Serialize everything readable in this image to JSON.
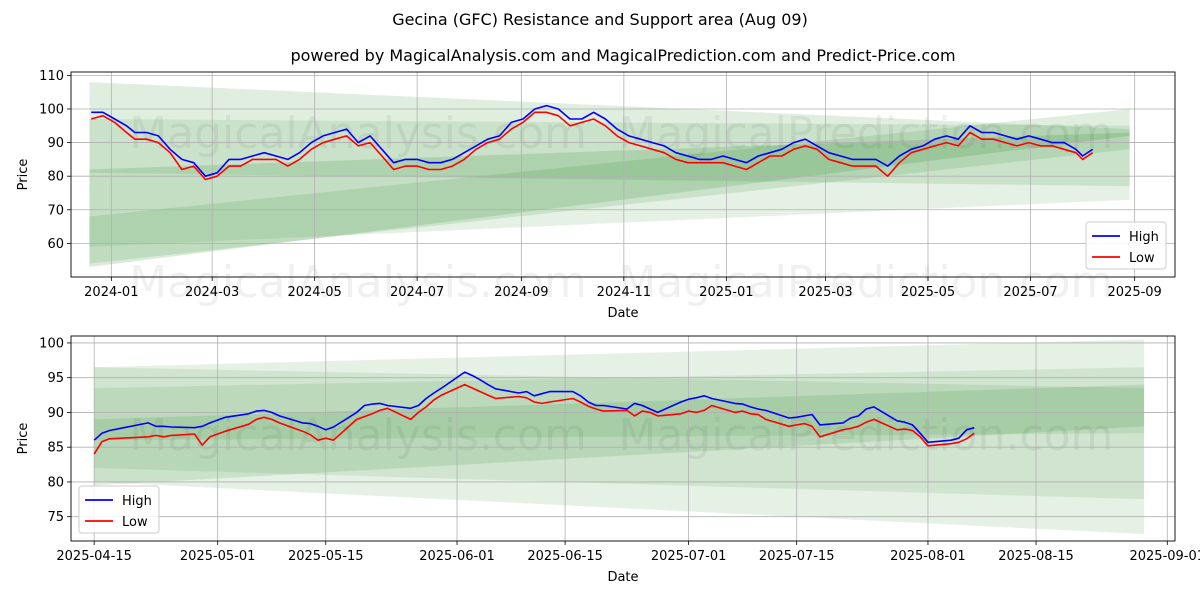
{
  "figure": {
    "title": "Gecina (GFC) Resistance and Support area (Aug 09)",
    "subtitle": "powered by MagicalAnalysis.com and MagicalPrediction.com and Predict-Price.com",
    "watermarks": [
      "MagicalAnalysis.com",
      "MagicalPrediction.com"
    ]
  },
  "colors": {
    "high": "#0000ff",
    "low": "#ff0000",
    "band": "#2e8b2e",
    "grid": "#b0b0b0"
  },
  "chart_data": [
    {
      "type": "line",
      "id": "overview",
      "xlabel": "Date",
      "ylabel": "Price",
      "x_axis": "date",
      "xlim": [
        "2023-12-08",
        "2025-09-25"
      ],
      "ylim": [
        50,
        111
      ],
      "x_ticks": [
        "2024-01-01",
        "2024-03-01",
        "2024-05-01",
        "2024-07-01",
        "2024-09-01",
        "2024-11-01",
        "2025-01-01",
        "2025-03-01",
        "2025-05-01",
        "2025-07-01",
        "2025-09-01"
      ],
      "x_tick_labels": [
        "2024-01",
        "2024-03",
        "2024-05",
        "2024-07",
        "2024-09",
        "2024-11",
        "2025-01",
        "2025-03",
        "2025-05",
        "2025-07",
        "2025-09"
      ],
      "y_ticks": [
        60,
        70,
        80,
        90,
        100,
        110
      ],
      "grid": true,
      "legend": {
        "placement": "lower right",
        "entries": [
          "High",
          "Low"
        ]
      },
      "bands": [
        {
          "x": [
            "2023-12-19",
            "2025-08-29"
          ],
          "upper": [
            108,
            94
          ],
          "lower": [
            81,
            77
          ],
          "opacity": 0.15
        },
        {
          "x": [
            "2023-12-19",
            "2025-08-29"
          ],
          "upper": [
            97,
            95
          ],
          "lower": [
            59,
            73
          ],
          "opacity": 0.12
        },
        {
          "x": [
            "2023-12-19",
            "2025-08-29"
          ],
          "upper": [
            82,
            93
          ],
          "lower": [
            53,
            92
          ],
          "opacity": 0.18
        },
        {
          "x": [
            "2023-12-19",
            "2025-08-29"
          ],
          "upper": [
            68,
            100
          ],
          "lower": [
            54,
            88
          ],
          "opacity": 0.15
        }
      ],
      "series": [
        {
          "name": "High",
          "x": [
            "2023-12-20",
            "2023-12-27",
            "2024-01-03",
            "2024-01-10",
            "2024-01-15",
            "2024-01-22",
            "2024-01-29",
            "2024-02-05",
            "2024-02-12",
            "2024-02-19",
            "2024-02-26",
            "2024-03-04",
            "2024-03-11",
            "2024-03-18",
            "2024-03-25",
            "2024-04-01",
            "2024-04-08",
            "2024-04-15",
            "2024-04-22",
            "2024-04-29",
            "2024-05-06",
            "2024-05-13",
            "2024-05-20",
            "2024-05-27",
            "2024-06-03",
            "2024-06-10",
            "2024-06-17",
            "2024-06-24",
            "2024-07-01",
            "2024-07-08",
            "2024-07-15",
            "2024-07-22",
            "2024-07-29",
            "2024-08-05",
            "2024-08-12",
            "2024-08-19",
            "2024-08-26",
            "2024-09-02",
            "2024-09-09",
            "2024-09-16",
            "2024-09-23",
            "2024-09-30",
            "2024-10-07",
            "2024-10-14",
            "2024-10-21",
            "2024-10-28",
            "2024-11-04",
            "2024-11-11",
            "2024-11-18",
            "2024-11-25",
            "2024-12-02",
            "2024-12-09",
            "2024-12-16",
            "2024-12-23",
            "2024-12-30",
            "2025-01-06",
            "2025-01-13",
            "2025-01-20",
            "2025-01-27",
            "2025-02-03",
            "2025-02-10",
            "2025-02-17",
            "2025-02-24",
            "2025-03-03",
            "2025-03-10",
            "2025-03-17",
            "2025-03-24",
            "2025-03-31",
            "2025-04-07",
            "2025-04-14",
            "2025-04-21",
            "2025-04-28",
            "2025-05-05",
            "2025-05-12",
            "2025-05-19",
            "2025-05-26",
            "2025-06-02",
            "2025-06-09",
            "2025-06-16",
            "2025-06-23",
            "2025-06-30",
            "2025-07-07",
            "2025-07-14",
            "2025-07-21",
            "2025-07-28",
            "2025-08-01",
            "2025-08-07"
          ],
          "values": [
            99,
            99,
            97,
            95,
            93,
            93,
            92,
            88,
            85,
            84,
            80,
            81,
            85,
            85,
            86,
            87,
            86,
            85,
            87,
            90,
            92,
            93,
            94,
            90,
            92,
            88,
            84,
            85,
            85,
            84,
            84,
            85,
            87,
            89,
            91,
            92,
            96,
            97,
            100,
            101,
            100,
            97,
            97,
            99,
            97,
            94,
            92,
            91,
            90,
            89,
            87,
            86,
            85,
            85,
            86,
            85,
            84,
            86,
            87,
            88,
            90,
            91,
            89,
            87,
            86,
            85,
            85,
            85,
            83,
            86,
            88,
            89,
            91,
            92,
            91,
            95,
            93,
            93,
            92,
            91,
            92,
            91,
            90,
            90,
            88,
            86,
            88
          ]
        },
        {
          "name": "Low",
          "x": [
            "2023-12-20",
            "2023-12-27",
            "2024-01-03",
            "2024-01-10",
            "2024-01-15",
            "2024-01-22",
            "2024-01-29",
            "2024-02-05",
            "2024-02-12",
            "2024-02-19",
            "2024-02-26",
            "2024-03-04",
            "2024-03-11",
            "2024-03-18",
            "2024-03-25",
            "2024-04-01",
            "2024-04-08",
            "2024-04-15",
            "2024-04-22",
            "2024-04-29",
            "2024-05-06",
            "2024-05-13",
            "2024-05-20",
            "2024-05-27",
            "2024-06-03",
            "2024-06-10",
            "2024-06-17",
            "2024-06-24",
            "2024-07-01",
            "2024-07-08",
            "2024-07-15",
            "2024-07-22",
            "2024-07-29",
            "2024-08-05",
            "2024-08-12",
            "2024-08-19",
            "2024-08-26",
            "2024-09-02",
            "2024-09-09",
            "2024-09-16",
            "2024-09-23",
            "2024-09-30",
            "2024-10-07",
            "2024-10-14",
            "2024-10-21",
            "2024-10-28",
            "2024-11-04",
            "2024-11-11",
            "2024-11-18",
            "2024-11-25",
            "2024-12-02",
            "2024-12-09",
            "2024-12-16",
            "2024-12-23",
            "2024-12-30",
            "2025-01-06",
            "2025-01-13",
            "2025-01-20",
            "2025-01-27",
            "2025-02-03",
            "2025-02-10",
            "2025-02-17",
            "2025-02-24",
            "2025-03-03",
            "2025-03-10",
            "2025-03-17",
            "2025-03-24",
            "2025-03-31",
            "2025-04-07",
            "2025-04-14",
            "2025-04-21",
            "2025-04-28",
            "2025-05-05",
            "2025-05-12",
            "2025-05-19",
            "2025-05-26",
            "2025-06-02",
            "2025-06-09",
            "2025-06-16",
            "2025-06-23",
            "2025-06-30",
            "2025-07-07",
            "2025-07-14",
            "2025-07-21",
            "2025-07-28",
            "2025-08-01",
            "2025-08-07"
          ],
          "values": [
            97,
            98,
            96,
            93,
            91,
            91,
            90,
            87,
            82,
            83,
            79,
            80,
            83,
            83,
            85,
            85,
            85,
            83,
            85,
            88,
            90,
            91,
            92,
            89,
            90,
            86,
            82,
            83,
            83,
            82,
            82,
            83,
            85,
            88,
            90,
            91,
            94,
            96,
            99,
            99,
            98,
            95,
            96,
            97,
            95,
            92,
            90,
            89,
            88,
            87,
            85,
            84,
            84,
            84,
            84,
            83,
            82,
            84,
            86,
            86,
            88,
            89,
            88,
            85,
            84,
            83,
            83,
            83,
            80,
            84,
            87,
            88,
            89,
            90,
            89,
            93,
            91,
            91,
            90,
            89,
            90,
            89,
            89,
            88,
            87,
            85,
            87
          ]
        }
      ]
    },
    {
      "type": "line",
      "id": "detail",
      "xlabel": "Date",
      "ylabel": "Price",
      "x_axis": "date",
      "xlim": [
        "2025-04-12",
        "2025-09-02"
      ],
      "ylim": [
        71.5,
        101
      ],
      "x_ticks": [
        "2025-04-15",
        "2025-05-01",
        "2025-05-15",
        "2025-06-01",
        "2025-06-15",
        "2025-07-01",
        "2025-07-15",
        "2025-08-01",
        "2025-08-15",
        "2025-09-01"
      ],
      "x_tick_labels": [
        "2025-04-15",
        "2025-05-01",
        "2025-05-15",
        "2025-06-01",
        "2025-06-15",
        "2025-07-01",
        "2025-07-15",
        "2025-08-01",
        "2025-08-15",
        "2025-09-01"
      ],
      "y_ticks": [
        75,
        80,
        85,
        90,
        95,
        100
      ],
      "grid": true,
      "legend": {
        "placement": "lower left",
        "entries": [
          "High",
          "Low"
        ]
      },
      "bands": [
        {
          "x": [
            "2025-04-15",
            "2025-08-29"
          ],
          "upper": [
            96.5,
            100.5
          ],
          "lower": [
            80,
            72.5
          ],
          "opacity": 0.12
        },
        {
          "x": [
            "2025-04-15",
            "2025-08-29"
          ],
          "upper": [
            96.5,
            93.5
          ],
          "lower": [
            82,
            77.5
          ],
          "opacity": 0.12
        },
        {
          "x": [
            "2025-04-15",
            "2025-08-29"
          ],
          "upper": [
            93.5,
            96.5
          ],
          "lower": [
            86,
            87
          ],
          "opacity": 0.12
        },
        {
          "x": [
            "2025-04-15",
            "2025-08-29"
          ],
          "upper": [
            89,
            94
          ],
          "lower": [
            79.5,
            88
          ],
          "opacity": 0.15
        }
      ],
      "series": [
        {
          "name": "High",
          "x": [
            "2025-04-15",
            "2025-04-16",
            "2025-04-17",
            "2025-04-22",
            "2025-04-23",
            "2025-04-24",
            "2025-04-25",
            "2025-04-28",
            "2025-04-29",
            "2025-04-30",
            "2025-05-02",
            "2025-05-05",
            "2025-05-06",
            "2025-05-07",
            "2025-05-08",
            "2025-05-09",
            "2025-05-12",
            "2025-05-13",
            "2025-05-14",
            "2025-05-15",
            "2025-05-16",
            "2025-05-19",
            "2025-05-20",
            "2025-05-21",
            "2025-05-22",
            "2025-05-23",
            "2025-05-26",
            "2025-05-27",
            "2025-05-28",
            "2025-05-29",
            "2025-05-30",
            "2025-06-02",
            "2025-06-03",
            "2025-06-04",
            "2025-06-05",
            "2025-06-06",
            "2025-06-09",
            "2025-06-10",
            "2025-06-11",
            "2025-06-12",
            "2025-06-13",
            "2025-06-16",
            "2025-06-17",
            "2025-06-18",
            "2025-06-19",
            "2025-06-20",
            "2025-06-23",
            "2025-06-24",
            "2025-06-25",
            "2025-06-26",
            "2025-06-27",
            "2025-06-30",
            "2025-07-01",
            "2025-07-02",
            "2025-07-03",
            "2025-07-04",
            "2025-07-07",
            "2025-07-08",
            "2025-07-09",
            "2025-07-10",
            "2025-07-11",
            "2025-07-14",
            "2025-07-15",
            "2025-07-16",
            "2025-07-17",
            "2025-07-18",
            "2025-07-21",
            "2025-07-22",
            "2025-07-23",
            "2025-07-24",
            "2025-07-25",
            "2025-07-28",
            "2025-07-29",
            "2025-07-30",
            "2025-07-31",
            "2025-08-01",
            "2025-08-04",
            "2025-08-05",
            "2025-08-06",
            "2025-08-07"
          ],
          "values": [
            86.0,
            87.0,
            87.4,
            88.5,
            88.0,
            88.0,
            87.9,
            87.8,
            88.0,
            88.5,
            89.3,
            89.8,
            90.2,
            90.3,
            90.0,
            89.5,
            88.5,
            88.4,
            88.0,
            87.5,
            87.9,
            90.0,
            91.0,
            91.2,
            91.3,
            91.0,
            90.6,
            91.0,
            92.0,
            92.8,
            93.5,
            95.8,
            95.3,
            94.7,
            94.0,
            93.4,
            92.8,
            93.0,
            92.4,
            92.7,
            93.0,
            93.0,
            92.4,
            91.5,
            91.0,
            91.0,
            90.5,
            91.3,
            91.0,
            90.5,
            90.0,
            91.5,
            91.9,
            92.1,
            92.4,
            92.0,
            91.3,
            91.2,
            90.8,
            90.5,
            90.3,
            89.2,
            89.3,
            89.5,
            89.7,
            88.2,
            88.5,
            89.2,
            89.5,
            90.5,
            90.8,
            88.8,
            88.6,
            88.2,
            87.0,
            85.7,
            86.0,
            86.3,
            87.5,
            87.8
          ]
        },
        {
          "name": "Low",
          "x": [
            "2025-04-15",
            "2025-04-16",
            "2025-04-17",
            "2025-04-22",
            "2025-04-23",
            "2025-04-24",
            "2025-04-25",
            "2025-04-28",
            "2025-04-29",
            "2025-04-30",
            "2025-05-02",
            "2025-05-05",
            "2025-05-06",
            "2025-05-07",
            "2025-05-08",
            "2025-05-09",
            "2025-05-12",
            "2025-05-13",
            "2025-05-14",
            "2025-05-15",
            "2025-05-16",
            "2025-05-19",
            "2025-05-20",
            "2025-05-21",
            "2025-05-22",
            "2025-05-23",
            "2025-05-26",
            "2025-05-27",
            "2025-05-28",
            "2025-05-29",
            "2025-05-30",
            "2025-06-02",
            "2025-06-03",
            "2025-06-04",
            "2025-06-05",
            "2025-06-06",
            "2025-06-09",
            "2025-06-10",
            "2025-06-11",
            "2025-06-12",
            "2025-06-13",
            "2025-06-16",
            "2025-06-17",
            "2025-06-18",
            "2025-06-19",
            "2025-06-20",
            "2025-06-23",
            "2025-06-24",
            "2025-06-25",
            "2025-06-26",
            "2025-06-27",
            "2025-06-30",
            "2025-07-01",
            "2025-07-02",
            "2025-07-03",
            "2025-07-04",
            "2025-07-07",
            "2025-07-08",
            "2025-07-09",
            "2025-07-10",
            "2025-07-11",
            "2025-07-14",
            "2025-07-15",
            "2025-07-16",
            "2025-07-17",
            "2025-07-18",
            "2025-07-21",
            "2025-07-22",
            "2025-07-23",
            "2025-07-24",
            "2025-07-25",
            "2025-07-28",
            "2025-07-29",
            "2025-07-30",
            "2025-07-31",
            "2025-08-01",
            "2025-08-04",
            "2025-08-05",
            "2025-08-06",
            "2025-08-07"
          ],
          "values": [
            84.0,
            85.8,
            86.2,
            86.5,
            86.7,
            86.5,
            86.7,
            86.9,
            85.3,
            86.5,
            87.3,
            88.3,
            89.0,
            89.3,
            89.0,
            88.5,
            87.3,
            86.8,
            86.0,
            86.3,
            86.0,
            89.0,
            89.4,
            89.8,
            90.3,
            90.6,
            89.0,
            90.0,
            90.8,
            91.8,
            92.5,
            94.0,
            93.5,
            93.0,
            92.5,
            92.0,
            92.3,
            92.1,
            91.5,
            91.3,
            91.5,
            92.0,
            91.5,
            90.9,
            90.5,
            90.2,
            90.3,
            89.5,
            90.2,
            90.0,
            89.5,
            89.8,
            90.2,
            90.0,
            90.3,
            91.0,
            90.0,
            90.2,
            89.8,
            89.7,
            89.0,
            88.0,
            88.2,
            88.4,
            88.0,
            86.5,
            87.5,
            87.7,
            88.0,
            88.6,
            89.0,
            87.5,
            87.6,
            87.4,
            86.5,
            85.2,
            85.5,
            85.7,
            86.2,
            87.0
          ]
        }
      ]
    }
  ]
}
